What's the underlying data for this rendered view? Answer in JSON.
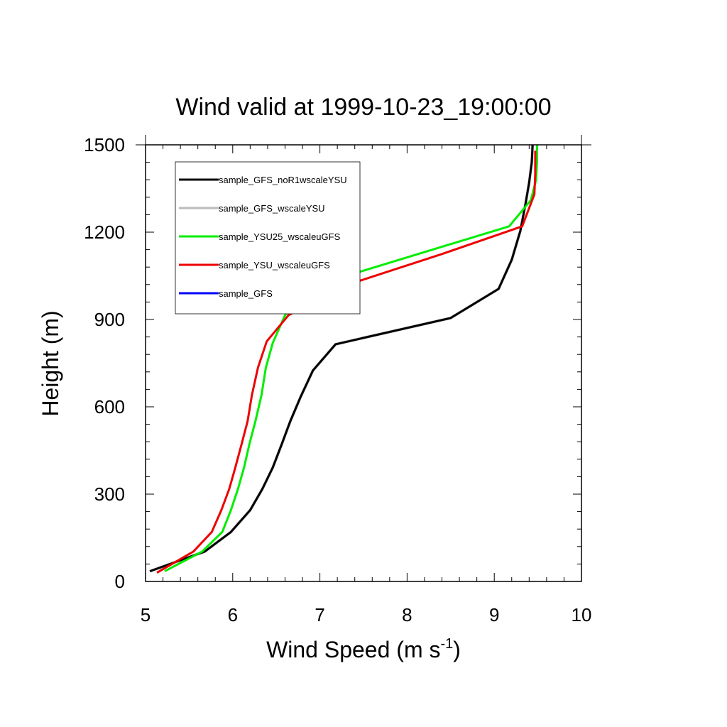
{
  "chart_data": {
    "type": "line",
    "title": "Wind valid at 1999-10-23_19:00:00",
    "xlabel_main": "Wind Speed (m s",
    "xlabel_sup": "-1",
    "xlabel_close": ")",
    "ylabel": "Height (m)",
    "xlim": [
      5,
      10
    ],
    "ylim": [
      0,
      1500
    ],
    "xticks": [
      "5",
      "6",
      "7",
      "8",
      "9",
      "10"
    ],
    "yticks": [
      "0",
      "300",
      "600",
      "900",
      "1200",
      "1500"
    ],
    "legend_position": "upper-left",
    "series": [
      {
        "name": "sample_GFS",
        "color": "#0000ff",
        "x": [
          5.05,
          5.68,
          5.98,
          6.2,
          6.34,
          6.46,
          6.56,
          6.66,
          6.78,
          6.92,
          7.18,
          8.5,
          9.05,
          9.2,
          9.3,
          9.36,
          9.4,
          9.43,
          9.44
        ],
        "y": [
          35,
          103,
          170,
          245,
          318,
          392,
          470,
          550,
          635,
          725,
          815,
          905,
          1005,
          1105,
          1205,
          1300,
          1370,
          1440,
          1500
        ]
      },
      {
        "name": "sample_GFS_wscaleYSU",
        "color": "#bbbbbb",
        "x": [
          5.05,
          5.68,
          5.98,
          6.2,
          6.34,
          6.46,
          6.56,
          6.66,
          6.78,
          6.92,
          7.18,
          8.5,
          9.05,
          9.2,
          9.3,
          9.36,
          9.4,
          9.43,
          9.44
        ],
        "y": [
          35,
          103,
          170,
          245,
          318,
          392,
          470,
          550,
          635,
          725,
          815,
          905,
          1005,
          1105,
          1205,
          1300,
          1370,
          1440,
          1500
        ]
      },
      {
        "name": "sample_GFS_noR1wscaleYSU",
        "color": "#000000",
        "x": [
          5.05,
          5.68,
          5.98,
          6.2,
          6.34,
          6.46,
          6.56,
          6.66,
          6.78,
          6.92,
          7.18,
          8.5,
          9.05,
          9.2,
          9.3,
          9.36,
          9.4,
          9.43,
          9.44
        ],
        "y": [
          35,
          103,
          170,
          245,
          318,
          392,
          470,
          550,
          635,
          725,
          815,
          905,
          1005,
          1105,
          1205,
          1300,
          1370,
          1440,
          1500
        ]
      },
      {
        "name": "sample_YSU25_wscaleuGFS",
        "color": "#00ee00",
        "x": [
          5.22,
          5.65,
          5.88,
          5.98,
          6.06,
          6.13,
          6.19,
          6.26,
          6.33,
          6.38,
          6.46,
          6.6,
          6.92,
          9.17,
          9.42,
          9.48,
          9.49,
          9.49
        ],
        "y": [
          35,
          103,
          170,
          245,
          318,
          392,
          470,
          550,
          640,
          735,
          820,
          915,
          1015,
          1220,
          1310,
          1380,
          1440,
          1500
        ]
      },
      {
        "name": "sample_YSU_wscaleuGFS",
        "color": "#ee0000",
        "x": [
          5.13,
          5.55,
          5.76,
          5.87,
          5.96,
          6.03,
          6.1,
          6.17,
          6.22,
          6.29,
          6.39,
          6.64,
          7.27,
          8.4,
          9.32,
          9.46,
          9.47,
          9.47
        ],
        "y": [
          30,
          103,
          170,
          245,
          318,
          392,
          470,
          550,
          640,
          735,
          825,
          915,
          1015,
          1125,
          1220,
          1330,
          1400,
          1480
        ]
      }
    ],
    "legend_order": [
      2,
      1,
      3,
      4,
      0
    ]
  }
}
